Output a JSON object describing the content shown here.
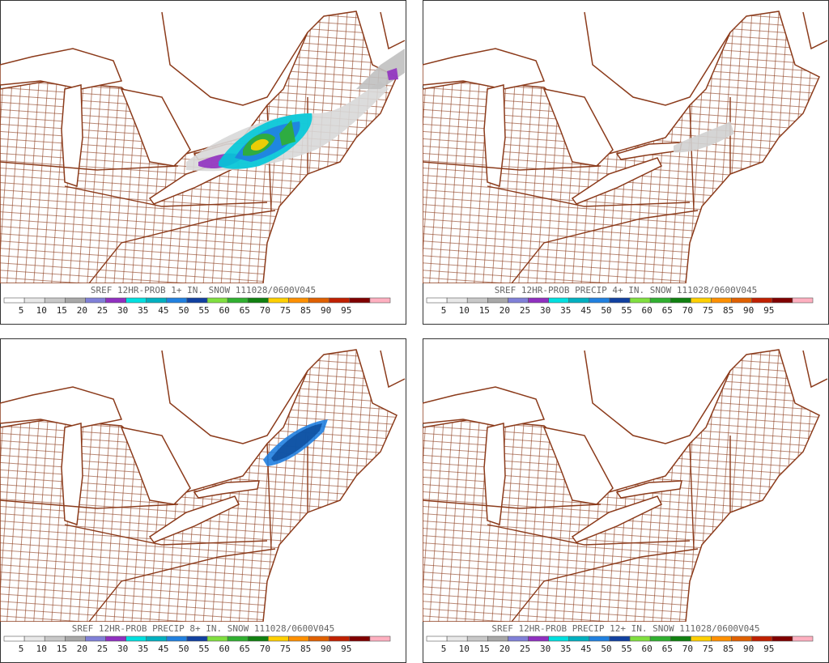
{
  "panels": [
    {
      "title": "SREF 12HR-PROB 1+ IN. SNOW 111028/0600V045"
    },
    {
      "title": "SREF 12HR-PROB PRECIP 4+ IN. SNOW 111028/0600V045"
    },
    {
      "title": "SREF 12HR-PROB PRECIP 8+ IN. SNOW 111028/0600V045"
    },
    {
      "title": "SREF 12HR-PROB PRECIP 12+ IN. SNOW 111028/0600V045"
    }
  ],
  "legend": {
    "labels": [
      "5",
      "10",
      "15",
      "20",
      "25",
      "30",
      "35",
      "45",
      "50",
      "55",
      "60",
      "65",
      "70",
      "75",
      "85",
      "90",
      "95"
    ],
    "colors": [
      "#ffffff",
      "#e8e8e8",
      "#c8c8c8",
      "#a8a8a8",
      "#8080d8",
      "#9030c0",
      "#00e0e0",
      "#00b0c0",
      "#2080e0",
      "#1040a0",
      "#80e040",
      "#30b030",
      "#108010",
      "#ffd000",
      "#ff9000",
      "#e06000",
      "#c02000",
      "#800000",
      "#ffb0c0"
    ]
  }
}
